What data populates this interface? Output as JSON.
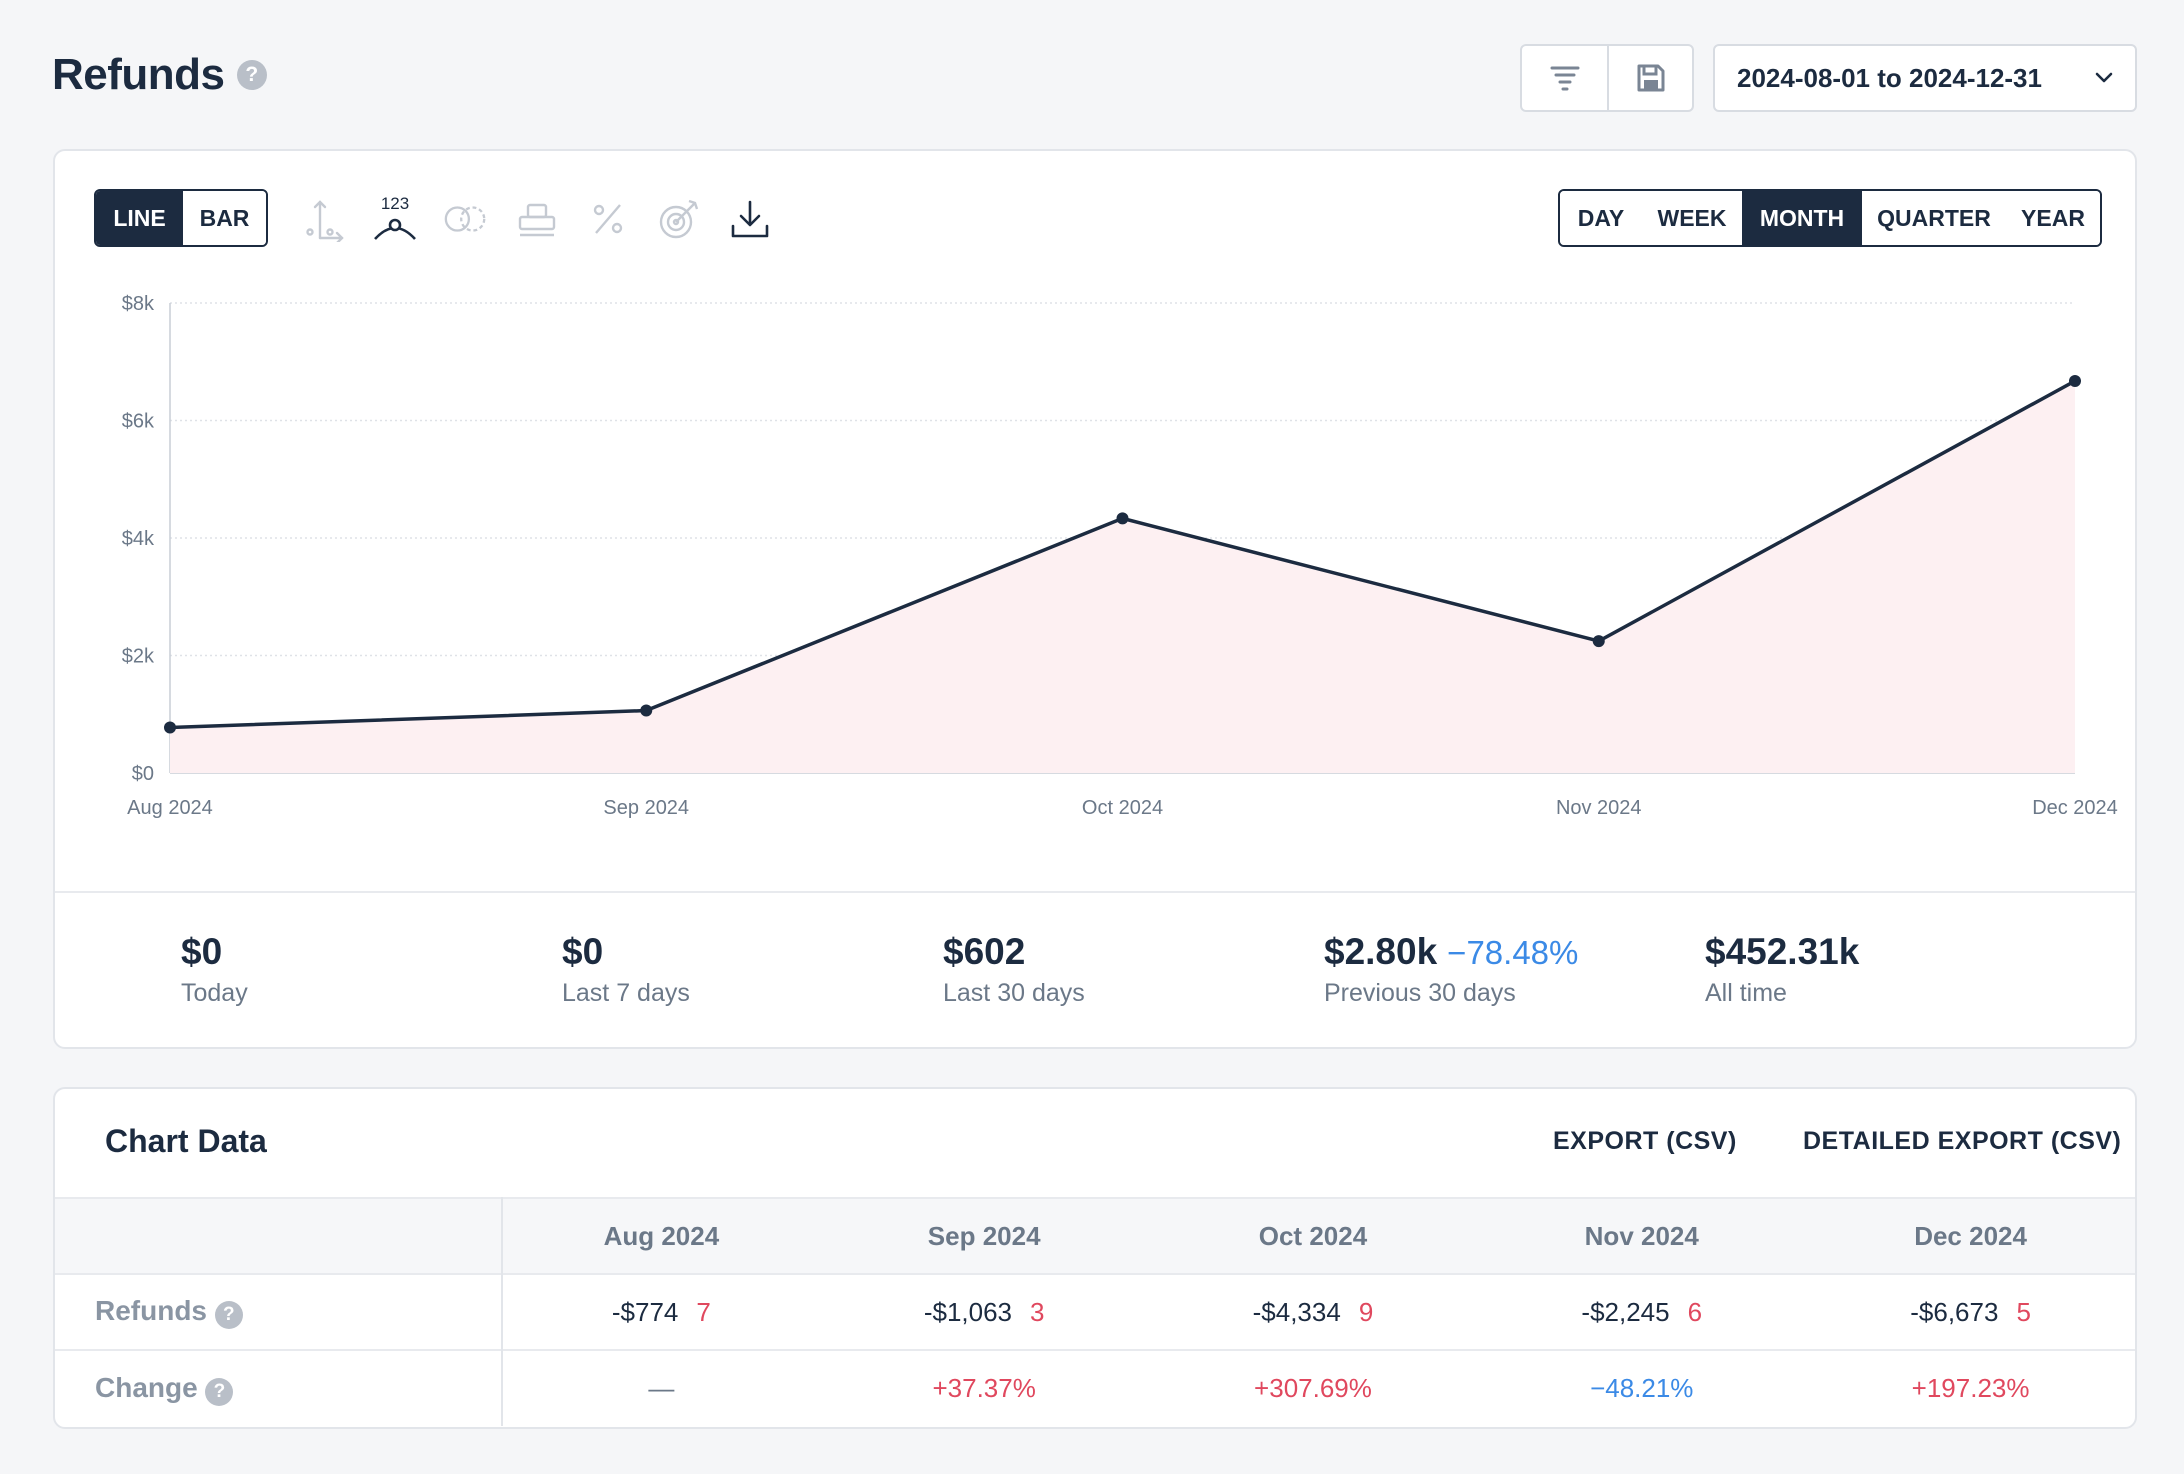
{
  "header": {
    "title": "Refunds",
    "help": "?",
    "date_range": "2024-08-01 to 2024-12-31"
  },
  "chart_controls": {
    "type_options": [
      "LINE",
      "BAR"
    ],
    "active_type": "LINE",
    "data_labels_icon_text": "123",
    "period_options": [
      "DAY",
      "WEEK",
      "MONTH",
      "QUARTER",
      "YEAR"
    ],
    "active_period": "MONTH"
  },
  "chart_data": {
    "type": "area",
    "categories": [
      "Aug 2024",
      "Sep 2024",
      "Oct 2024",
      "Nov 2024",
      "Dec 2024"
    ],
    "series": [
      {
        "values": [
          774,
          1063,
          4334,
          2245,
          6673
        ]
      }
    ],
    "yticks": [
      "$0",
      "$2k",
      "$4k",
      "$6k",
      "$8k"
    ],
    "ylim": [
      0,
      8000
    ],
    "grid": true,
    "line_color": "#1c2b40",
    "fill_color": "#fdf0f2"
  },
  "stats": [
    {
      "value": "$0",
      "label": "Today"
    },
    {
      "value": "$0",
      "label": "Last 7 days"
    },
    {
      "value": "$602",
      "label": "Last 30 days"
    },
    {
      "value": "$2.80k",
      "change": "−78.48%",
      "label": "Previous 30 days"
    },
    {
      "value": "$452.31k",
      "label": "All time"
    }
  ],
  "table": {
    "title": "Chart Data",
    "export_label": "EXPORT (CSV)",
    "detailed_export_label": "DETAILED EXPORT (CSV)",
    "columns": [
      "Aug 2024",
      "Sep 2024",
      "Oct 2024",
      "Nov 2024",
      "Dec 2024"
    ],
    "rows": [
      {
        "label": "Refunds",
        "cells": [
          {
            "value": "-$774",
            "count": "7"
          },
          {
            "value": "-$1,063",
            "count": "3"
          },
          {
            "value": "-$4,334",
            "count": "9"
          },
          {
            "value": "-$2,245",
            "count": "6"
          },
          {
            "value": "-$6,673",
            "count": "5"
          }
        ]
      },
      {
        "label": "Change",
        "cells": [
          {
            "value": "—",
            "tone": "muted"
          },
          {
            "value": "+37.37%",
            "tone": "pos"
          },
          {
            "value": "+307.69%",
            "tone": "pos"
          },
          {
            "value": "−48.21%",
            "tone": "neg"
          },
          {
            "value": "+197.23%",
            "tone": "pos"
          }
        ]
      }
    ]
  },
  "colors": {
    "primary": "#1c2b40",
    "positive_change": "#e0485e",
    "negative_change": "#3b8ae6"
  }
}
